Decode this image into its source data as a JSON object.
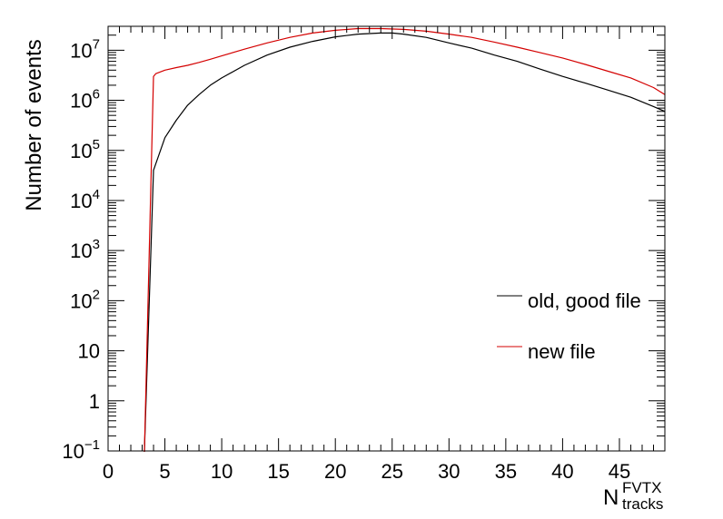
{
  "chart_data": {
    "type": "line",
    "title": "",
    "xlabel": "N",
    "xlabel_superscript": "FVTX",
    "xlabel_subscript": "tracks",
    "ylabel": "Number of events",
    "xlim": [
      0,
      49
    ],
    "ylim": [
      0.1,
      30000000
    ],
    "yscale": "log",
    "grid": false,
    "legend_placement": "right",
    "x_tick_labels": [
      "0",
      "5",
      "10",
      "15",
      "20",
      "25",
      "30",
      "35",
      "40",
      "45"
    ],
    "y_tick_labels": [
      {
        "value": 0.1,
        "base": "10",
        "exp": "−1"
      },
      {
        "value": 1,
        "base": "1",
        "exp": ""
      },
      {
        "value": 10,
        "base": "10",
        "exp": ""
      },
      {
        "value": 100,
        "base": "10",
        "exp": "2"
      },
      {
        "value": 1000,
        "base": "10",
        "exp": "3"
      },
      {
        "value": 10000,
        "base": "10",
        "exp": "4"
      },
      {
        "value": 100000,
        "base": "10",
        "exp": "5"
      },
      {
        "value": 1000000,
        "base": "10",
        "exp": "6"
      },
      {
        "value": 10000000,
        "base": "10",
        "exp": "7"
      }
    ],
    "series": [
      {
        "name": "old, good file",
        "color": "#000000",
        "x": [
          3.2,
          4.0,
          5.0,
          6.0,
          7.0,
          8.0,
          9.0,
          10.0,
          12.0,
          14.0,
          16.0,
          18.0,
          20.0,
          22.0,
          24.0,
          25.0,
          26.0,
          28.0,
          30.0,
          32.0,
          34.0,
          36.0,
          38.0,
          40.0,
          42.0,
          44.0,
          46.0,
          48.0,
          49.0
        ],
        "values": [
          0.1,
          40000,
          180000,
          400000,
          800000,
          1300000,
          2000000,
          2800000,
          5000000,
          8000000,
          11500000,
          15000000,
          18500000,
          21000000,
          22000000,
          22000000,
          21000000,
          18000000,
          14000000,
          11000000,
          8000000,
          6000000,
          4200000,
          3000000,
          2200000,
          1600000,
          1150000,
          750000,
          600000
        ]
      },
      {
        "name": "new file",
        "color": "#d40000",
        "x": [
          3.2,
          4.0,
          4.2,
          5.0,
          6.0,
          7.0,
          8.0,
          9.0,
          10.0,
          12.0,
          14.0,
          16.0,
          18.0,
          20.0,
          22.0,
          24.0,
          26.0,
          28.0,
          30.0,
          32.0,
          34.0,
          36.0,
          38.0,
          40.0,
          42.0,
          44.0,
          46.0,
          48.0,
          49.0
        ],
        "values": [
          0.1,
          3000000,
          3400000,
          4000000,
          4500000,
          5000000,
          5700000,
          6600000,
          7700000,
          10500000,
          14000000,
          18000000,
          22000000,
          25000000,
          27000000,
          27000000,
          26000000,
          24000000,
          21000000,
          18000000,
          14500000,
          11500000,
          9000000,
          7000000,
          5200000,
          3800000,
          2800000,
          1800000,
          1300000
        ]
      }
    ]
  }
}
